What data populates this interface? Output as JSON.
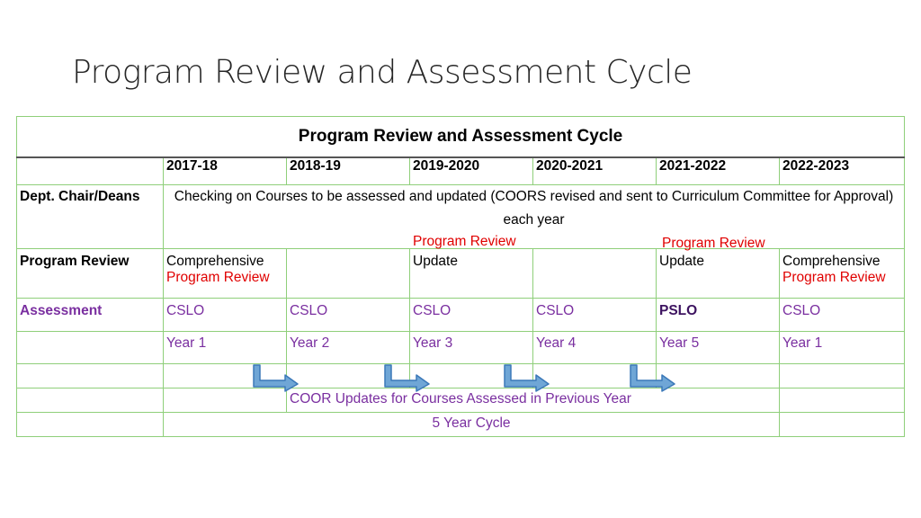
{
  "slide": {
    "title": "Program Review and Assessment Cycle"
  },
  "table": {
    "title": "Program Review and Assessment Cycle",
    "years": [
      "2017-18",
      "2018-19",
      "2019-2020",
      "2020-2021",
      "2021-2022",
      "2022-2023"
    ],
    "dept": {
      "label": "Dept. Chair/Deans",
      "text": "Checking on Courses to be assessed and updated (COORS revised and sent to Curriculum Committee for Approval) each year"
    },
    "overflow_labels": [
      "Program Review",
      "Program Review"
    ],
    "program_review": {
      "label": "Program Review",
      "cells": [
        {
          "line1": "Comprehensive",
          "line2": "Program Review"
        },
        {
          "line1": "",
          "line2": ""
        },
        {
          "line1": "Update",
          "line2": ""
        },
        {
          "line1": "",
          "line2": ""
        },
        {
          "line1": "Update",
          "line2": ""
        },
        {
          "line1": "Comprehensive",
          "line2": "Program Review"
        }
      ]
    },
    "assessment": {
      "label": "Assessment",
      "values": [
        "CSLO",
        "CSLO",
        "CSLO",
        "CSLO",
        "PSLO",
        "CSLO"
      ]
    },
    "year_labels": [
      "Year 1",
      "Year 2",
      "Year 3",
      "Year 4",
      "Year 5",
      "Year 1"
    ],
    "coor_text": "COOR Updates for Courses Assessed in Previous Year",
    "cycle_text": "5 Year Cycle",
    "colors": {
      "grid_border": "#8fcf7a",
      "red_text": "#e00000",
      "purple_text": "#7a2fa0",
      "arrow_fill": "#6fa6d6",
      "arrow_stroke": "#3b78b8"
    }
  }
}
